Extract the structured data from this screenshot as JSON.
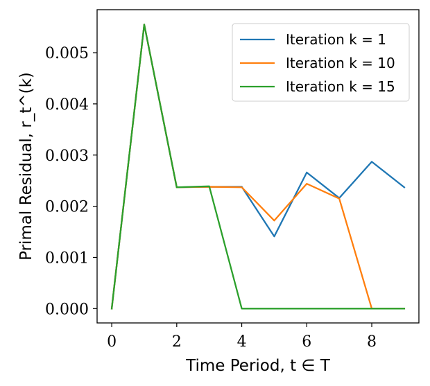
{
  "chart_data": {
    "type": "line",
    "title": "",
    "xlabel": "Time Period, t ∈ T",
    "ylabel": "Primal Residual, r_t^(k)",
    "xlim": [
      -0.45,
      9.45
    ],
    "ylim": [
      -0.00028,
      0.00584
    ],
    "x_ticks": [
      0,
      2,
      4,
      6,
      8
    ],
    "y_ticks": [
      0.0,
      0.001,
      0.002,
      0.003,
      0.004,
      0.005
    ],
    "x_tick_labels": [
      "0",
      "2",
      "4",
      "6",
      "8"
    ],
    "y_tick_labels": [
      "0.000",
      "0.001",
      "0.002",
      "0.003",
      "0.004",
      "0.005"
    ],
    "grid": false,
    "legend_position": "top-right",
    "x": [
      0,
      1,
      2,
      3,
      4,
      5,
      6,
      7,
      8,
      9
    ],
    "series": [
      {
        "name": "Iteration k = 1",
        "color": "#1f77b4",
        "values": [
          0.0,
          0.00555,
          0.00237,
          0.00238,
          0.00238,
          0.00141,
          0.00266,
          0.00216,
          0.00287,
          0.00237
        ]
      },
      {
        "name": "Iteration k = 10",
        "color": "#ff7f0e",
        "values": [
          0.0,
          0.00555,
          0.00237,
          0.00238,
          0.00237,
          0.00172,
          0.00244,
          0.00215,
          0.0,
          0.0
        ]
      },
      {
        "name": "Iteration k = 15",
        "color": "#2ca02c",
        "values": [
          0.0,
          0.00555,
          0.00237,
          0.00239,
          0.0,
          0.0,
          0.0,
          0.0,
          0.0,
          0.0
        ]
      }
    ]
  }
}
